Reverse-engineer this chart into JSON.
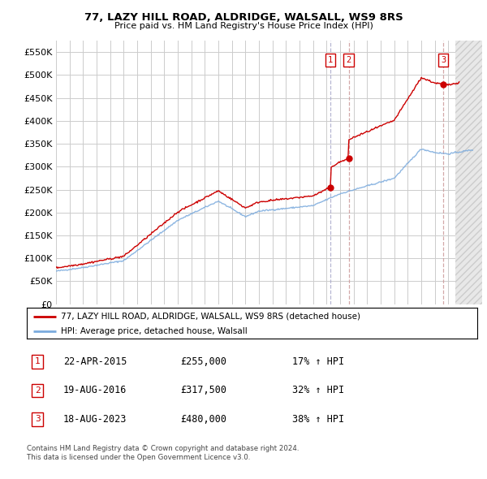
{
  "title": "77, LAZY HILL ROAD, ALDRIDGE, WALSALL, WS9 8RS",
  "subtitle": "Price paid vs. HM Land Registry's House Price Index (HPI)",
  "ytick_values": [
    0,
    50000,
    100000,
    150000,
    200000,
    250000,
    300000,
    350000,
    400000,
    450000,
    500000,
    550000
  ],
  "hpi_line_color": "#7aaadd",
  "price_line_color": "#cc0000",
  "sale_marker_color": "#cc0000",
  "transactions": [
    {
      "label": "1",
      "date": "22-APR-2015",
      "year": 2015.3,
      "price": 255000,
      "hpi_pct": "17% ↑ HPI"
    },
    {
      "label": "2",
      "date": "19-AUG-2016",
      "year": 2016.63,
      "price": 317500,
      "hpi_pct": "32% ↑ HPI"
    },
    {
      "label": "3",
      "date": "18-AUG-2023",
      "year": 2023.63,
      "price": 480000,
      "hpi_pct": "38% ↑ HPI"
    }
  ],
  "legend_label_red": "77, LAZY HILL ROAD, ALDRIDGE, WALSALL, WS9 8RS (detached house)",
  "legend_label_blue": "HPI: Average price, detached house, Walsall",
  "footnote1": "Contains HM Land Registry data © Crown copyright and database right 2024.",
  "footnote2": "This data is licensed under the Open Government Licence v3.0.",
  "background_color": "#ffffff",
  "grid_color": "#cccccc",
  "xlim": [
    1995,
    2026.5
  ],
  "ylim": [
    0,
    575000
  ],
  "num_box_color": "#cc0000"
}
